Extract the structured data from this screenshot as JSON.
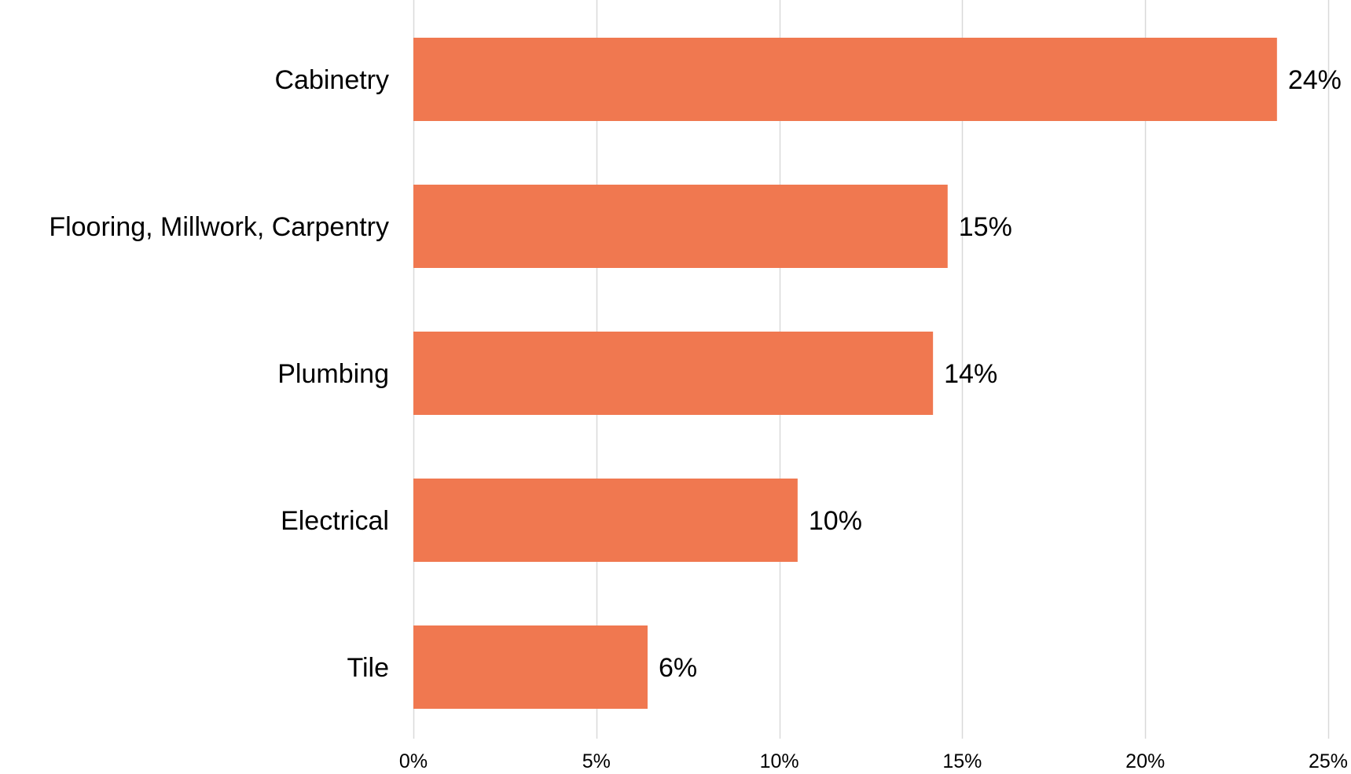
{
  "chart_data": {
    "type": "bar",
    "orientation": "horizontal",
    "categories": [
      "Cabinetry",
      "Flooring, Millwork, Carpentry",
      "Plumbing",
      "Electrical",
      "Tile"
    ],
    "values": [
      23.6,
      14.6,
      14.2,
      10.5,
      6.4
    ],
    "data_labels": [
      "24%",
      "15%",
      "14%",
      "10%",
      "6%"
    ],
    "x_ticks": [
      0,
      5,
      10,
      15,
      20,
      25
    ],
    "x_tick_labels": [
      "0%",
      "5%",
      "10%",
      "15%",
      "20%",
      "25%"
    ],
    "xlim": [
      0,
      25
    ],
    "grid": true,
    "bar_color": "#F07850",
    "grid_color": "#D9D9D9",
    "title": "",
    "xlabel": "",
    "ylabel": ""
  }
}
